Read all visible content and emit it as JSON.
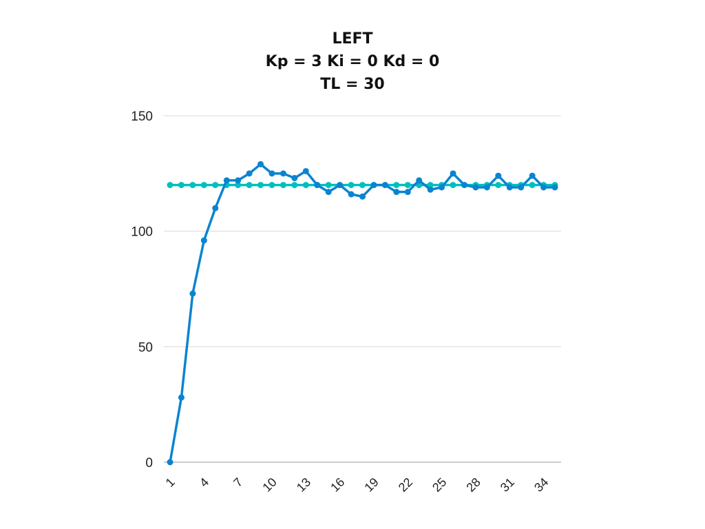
{
  "chart_data": {
    "type": "line",
    "title": [
      "LEFT",
      "Kp = 3 Ki = 0 Kd = 0",
      "TL = 30"
    ],
    "xlabel": "",
    "ylabel": "",
    "ylim": [
      0,
      150
    ],
    "yticks": [
      0,
      50,
      100,
      150
    ],
    "x": [
      1,
      2,
      3,
      4,
      5,
      6,
      7,
      8,
      9,
      10,
      11,
      12,
      13,
      14,
      15,
      16,
      17,
      18,
      19,
      20,
      21,
      22,
      23,
      24,
      25,
      26,
      27,
      28,
      29,
      30,
      31,
      32,
      33,
      34,
      35
    ],
    "xtick_labels": [
      "1",
      "4",
      "7",
      "10",
      "13",
      "16",
      "19",
      "22",
      "25",
      "28",
      "31",
      "34"
    ],
    "xtick_values": [
      1,
      4,
      7,
      10,
      13,
      16,
      19,
      22,
      25,
      28,
      31,
      34
    ],
    "grid": true,
    "series": [
      {
        "color": "#00BFBF",
        "values": [
          120,
          120,
          120,
          120,
          120,
          120,
          120,
          120,
          120,
          120,
          120,
          120,
          120,
          120,
          120,
          120,
          120,
          120,
          120,
          120,
          120,
          120,
          120,
          120,
          120,
          120,
          120,
          120,
          120,
          120,
          120,
          120,
          120,
          120,
          120
        ]
      },
      {
        "color": "#0A84D0",
        "values": [
          0,
          28,
          73,
          96,
          110,
          122,
          122,
          125,
          129,
          125,
          125,
          123,
          126,
          120,
          117,
          120,
          116,
          115,
          120,
          120,
          117,
          117,
          122,
          118,
          119,
          125,
          120,
          119,
          119,
          124,
          119,
          119,
          124,
          119,
          119
        ]
      }
    ]
  }
}
